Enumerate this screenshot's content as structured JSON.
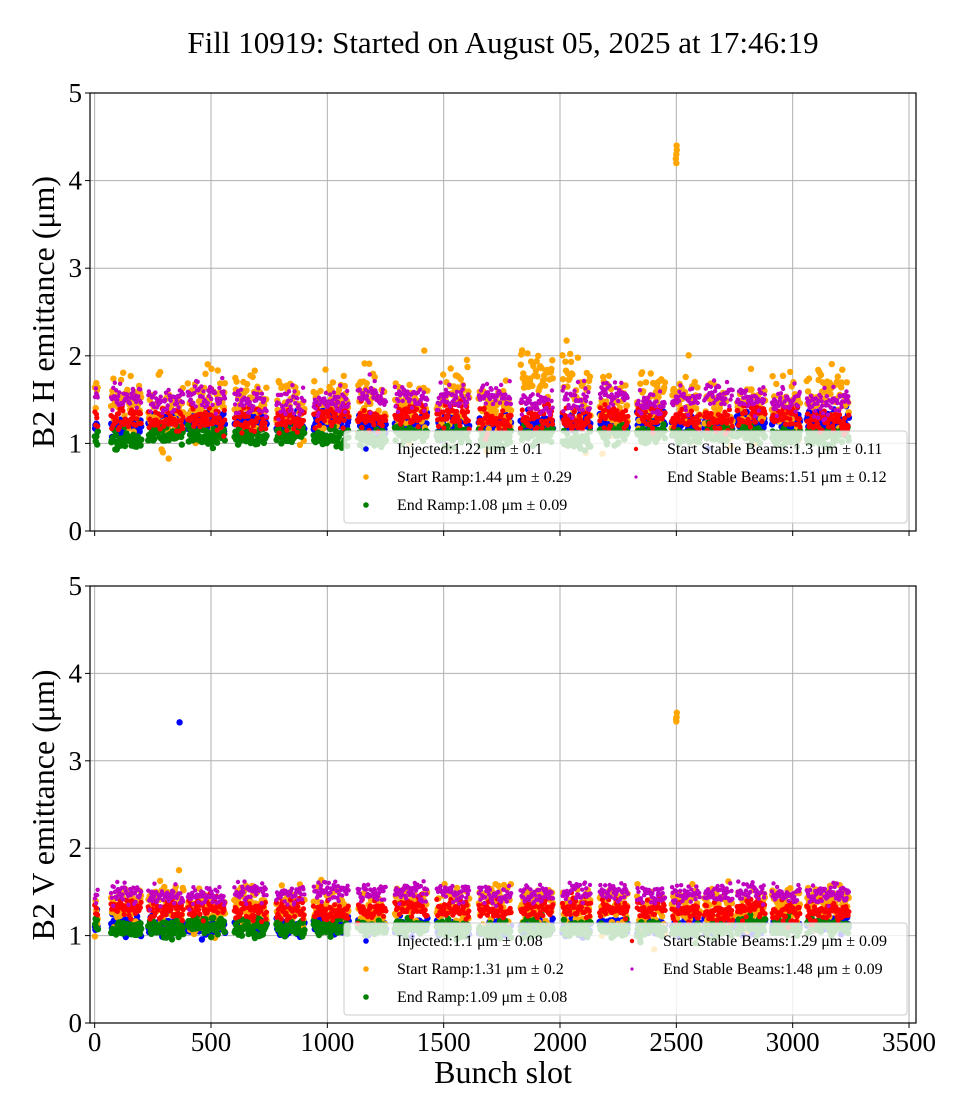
{
  "chart_data": [
    {
      "type": "scatter",
      "title": "Fill 10919: Started on August 05, 2025 at 17:46:19",
      "xlabel": "",
      "ylabel": "B2 H emittance (μm)",
      "xlim": [
        -20,
        3530
      ],
      "ylim": [
        0,
        5
      ],
      "xticks": [
        0,
        500,
        1000,
        1500,
        2000,
        2500,
        3000,
        3500
      ],
      "yticks": [
        0,
        1,
        2,
        3,
        4,
        5
      ],
      "xticklabels_visible": false,
      "grid": true,
      "legend_location": "lower-right",
      "bunch_trains": [
        [
          0,
          12
        ],
        [
          70,
          200
        ],
        [
          230,
          380
        ],
        [
          400,
          560
        ],
        [
          600,
          740
        ],
        [
          780,
          900
        ],
        [
          940,
          1090
        ],
        [
          1130,
          1250
        ],
        [
          1290,
          1430
        ],
        [
          1470,
          1610
        ],
        [
          1650,
          1790
        ],
        [
          1830,
          1970
        ],
        [
          2010,
          2130
        ],
        [
          2170,
          2290
        ],
        [
          2330,
          2450
        ],
        [
          2480,
          2600
        ],
        [
          2620,
          2740
        ],
        [
          2760,
          2880
        ],
        [
          2910,
          3030
        ],
        [
          3060,
          3240
        ]
      ],
      "series": [
        {
          "name": "Injected",
          "label": "Injected:1.22 μm ± 0.1",
          "mean": 1.22,
          "std": 0.1,
          "color": "#0000ff"
        },
        {
          "name": "Start Ramp",
          "label": "Start Ramp:1.44 μm ± 0.29",
          "mean": 1.44,
          "std": 0.29,
          "color": "#ffa500",
          "outliers": [
            [
              2500,
              4.2
            ],
            [
              2500,
              4.3
            ],
            [
              2502,
              4.35
            ],
            [
              2498,
              4.25
            ],
            [
              2501,
              4.4
            ]
          ]
        },
        {
          "name": "End Ramp",
          "label": "End Ramp:1.08 μm ± 0.09",
          "mean": 1.08,
          "std": 0.09,
          "color": "#008000"
        },
        {
          "name": "Start Stable Beams",
          "label": "Start Stable Beams:1.3 μm ± 0.11",
          "mean": 1.3,
          "std": 0.11,
          "color": "#ff0000"
        },
        {
          "name": "End Stable Beams",
          "label": "End Stable Beams:1.51 μm ± 0.12",
          "mean": 1.51,
          "std": 0.12,
          "color": "#bf00bf"
        }
      ]
    },
    {
      "type": "scatter",
      "title": "",
      "xlabel": "Bunch slot",
      "ylabel": "B2 V emittance (μm)",
      "xlim": [
        -20,
        3530
      ],
      "ylim": [
        0,
        5
      ],
      "xticks": [
        0,
        500,
        1000,
        1500,
        2000,
        2500,
        3000,
        3500
      ],
      "xticklabels": [
        "0",
        "500",
        "1000",
        "1500",
        "2000",
        "2500",
        "3000",
        "3500"
      ],
      "yticks": [
        0,
        1,
        2,
        3,
        4,
        5
      ],
      "grid": true,
      "legend_location": "lower-right",
      "bunch_trains": [
        [
          0,
          12
        ],
        [
          70,
          200
        ],
        [
          230,
          380
        ],
        [
          400,
          560
        ],
        [
          600,
          740
        ],
        [
          780,
          900
        ],
        [
          940,
          1090
        ],
        [
          1130,
          1250
        ],
        [
          1290,
          1430
        ],
        [
          1470,
          1610
        ],
        [
          1650,
          1790
        ],
        [
          1830,
          1970
        ],
        [
          2010,
          2130
        ],
        [
          2170,
          2290
        ],
        [
          2330,
          2450
        ],
        [
          2480,
          2600
        ],
        [
          2620,
          2740
        ],
        [
          2760,
          2880
        ],
        [
          2910,
          3030
        ],
        [
          3060,
          3240
        ]
      ],
      "series": [
        {
          "name": "Injected",
          "label": "Injected:1.1 μm ± 0.08",
          "mean": 1.1,
          "std": 0.08,
          "color": "#0000ff",
          "outliers": [
            [
              365,
              3.44
            ]
          ]
        },
        {
          "name": "Start Ramp",
          "label": "Start Ramp:1.31 μm ± 0.2",
          "mean": 1.31,
          "std": 0.2,
          "color": "#ffa500",
          "outliers": [
            [
              2500,
              3.45
            ],
            [
              2501,
              3.5
            ],
            [
              2502,
              3.55
            ],
            [
              2499,
              3.48
            ]
          ]
        },
        {
          "name": "End Ramp",
          "label": "End Ramp:1.09 μm ± 0.08",
          "mean": 1.09,
          "std": 0.08,
          "color": "#008000"
        },
        {
          "name": "Start Stable Beams",
          "label": "Start Stable Beams:1.29 μm ± 0.09",
          "mean": 1.29,
          "std": 0.09,
          "color": "#ff0000"
        },
        {
          "name": "End Stable Beams",
          "label": "End Stable Beams:1.48 μm ± 0.09",
          "mean": 1.48,
          "std": 0.09,
          "color": "#bf00bf"
        }
      ]
    }
  ]
}
